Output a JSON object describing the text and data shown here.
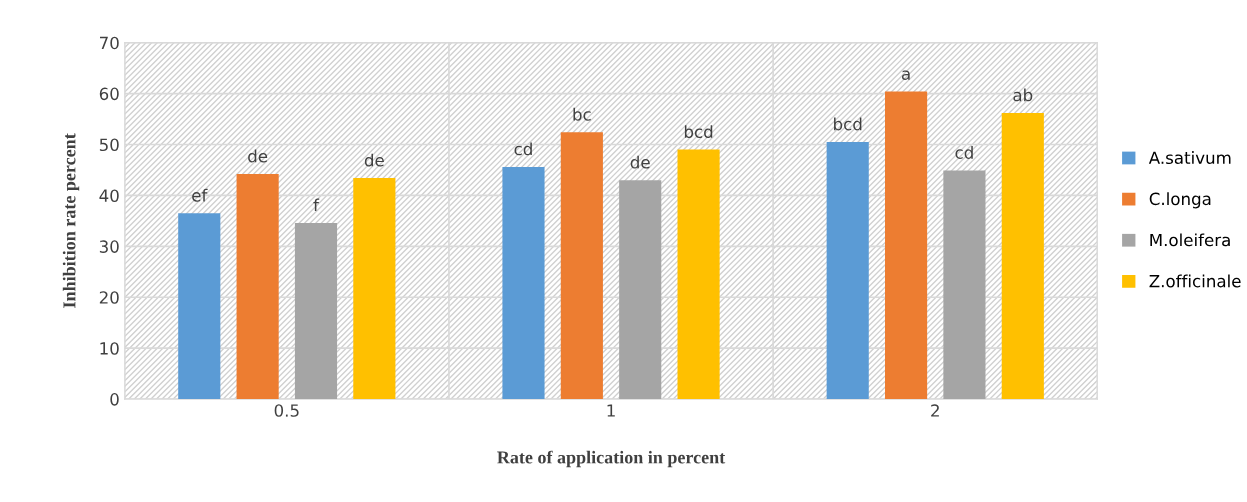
{
  "chart_data": {
    "type": "bar",
    "xlabel": "Rate of application in percent",
    "ylabel": "Inhibition rate percent",
    "categories": [
      "0.5",
      "1",
      "2"
    ],
    "series": [
      {
        "name": "A.sativum",
        "color": "#5b9bd5",
        "values": [
          36.5,
          45.6,
          50.5
        ],
        "value_labels": [
          "ef",
          "cd",
          "bcd"
        ]
      },
      {
        "name": "C.longa",
        "color": "#ed7d31",
        "values": [
          44.2,
          52.4,
          60.4
        ],
        "value_labels": [
          "de",
          "bc",
          "a"
        ]
      },
      {
        "name": "M.oleifera",
        "color": "#a5a5a5",
        "values": [
          34.6,
          43.0,
          44.9
        ],
        "value_labels": [
          "f",
          "de",
          "cd"
        ]
      },
      {
        "name": "Z.officinale",
        "color": "#ffc000",
        "values": [
          43.4,
          49.0,
          56.2
        ],
        "value_labels": [
          "de",
          "bcd",
          "ab"
        ]
      }
    ],
    "ylim": [
      0,
      70
    ],
    "yticks": [
      0,
      10,
      20,
      30,
      40,
      50,
      60,
      70
    ],
    "grid": true,
    "legend": "right"
  }
}
